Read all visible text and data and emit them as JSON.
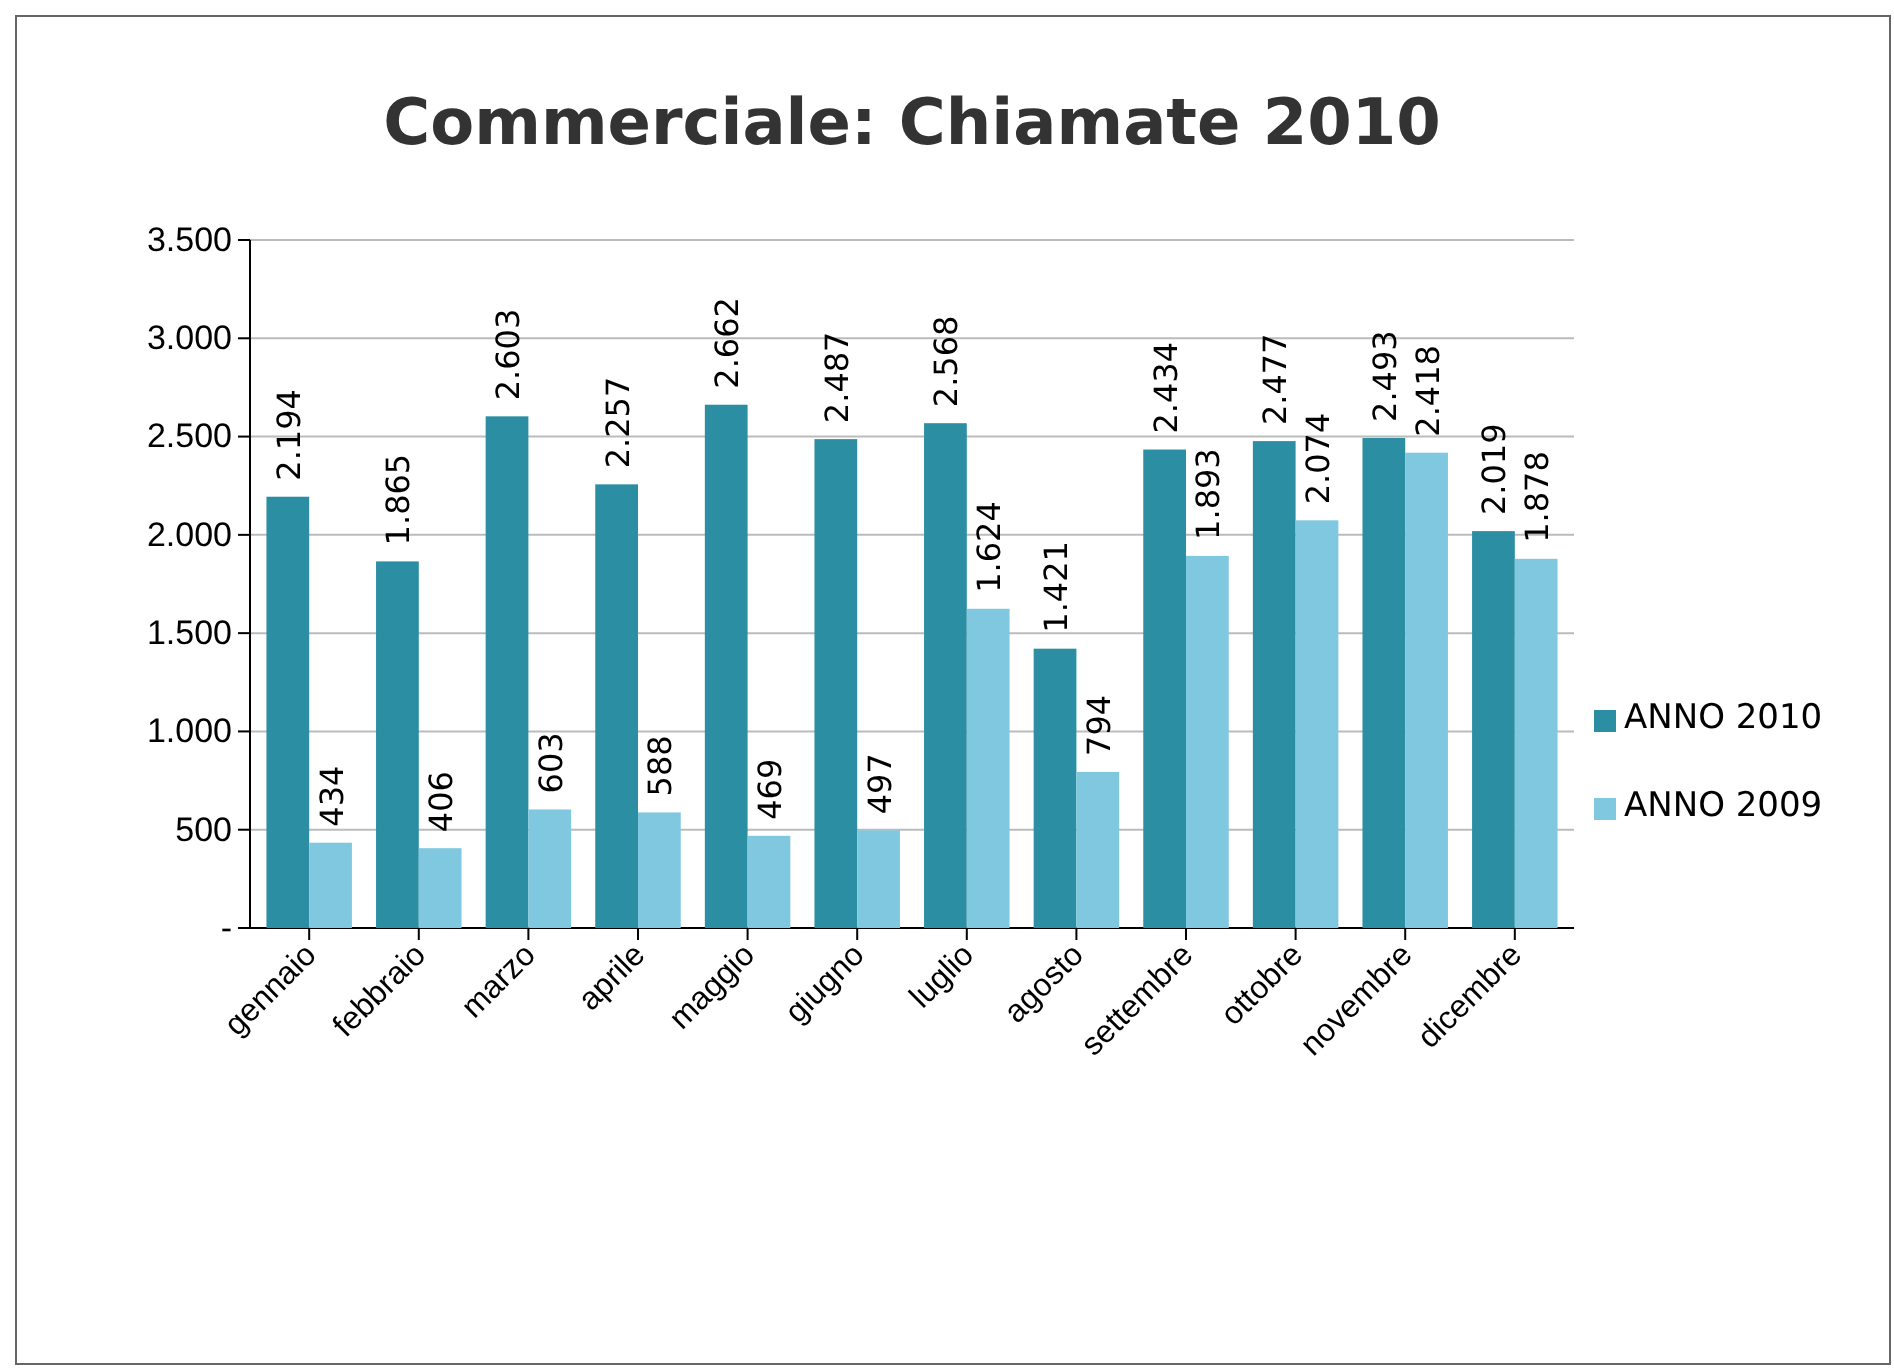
{
  "chart_data": {
    "type": "bar",
    "title": "Commerciale: Chiamate 2010",
    "categories": [
      "gennaio",
      "febbraio",
      "marzo",
      "aprile",
      "maggio",
      "giugno",
      "luglio",
      "agosto",
      "settembre",
      "ottobre",
      "novembre",
      "dicembre"
    ],
    "series": [
      {
        "name": "ANNO 2010",
        "color": "#2b8ea3",
        "values": [
          2194,
          1865,
          2603,
          2257,
          2662,
          2487,
          2568,
          1421,
          2434,
          2477,
          2493,
          2019
        ],
        "value_labels": [
          "2.194",
          "1.865",
          "2.603",
          "2.257",
          "2.662",
          "2.487",
          "2.568",
          "1.421",
          "2.434",
          "2.477",
          "2.493",
          "2.019"
        ]
      },
      {
        "name": "ANNO 2009",
        "color": "#80c8e0",
        "values": [
          434,
          406,
          603,
          588,
          469,
          497,
          1624,
          794,
          1893,
          2074,
          2418,
          1878
        ],
        "value_labels": [
          "434",
          "406",
          "603",
          "588",
          "469",
          "497",
          "1.624",
          "794",
          "1.893",
          "2.074",
          "2.418",
          "1.878"
        ]
      }
    ],
    "ylim": [
      0,
      3500
    ],
    "yticks": [
      {
        "value": 0,
        "label": "-"
      },
      500,
      {
        "value": 1000,
        "label": "1.000"
      },
      {
        "value": 1500,
        "label": "1.500"
      },
      {
        "value": 2000,
        "label": "2.000"
      },
      {
        "value": 2500,
        "label": "2.500"
      },
      {
        "value": 3000,
        "label": "3.000"
      },
      {
        "value": 3500,
        "label": "3.500"
      }
    ],
    "grid": "y",
    "legend": "right"
  }
}
